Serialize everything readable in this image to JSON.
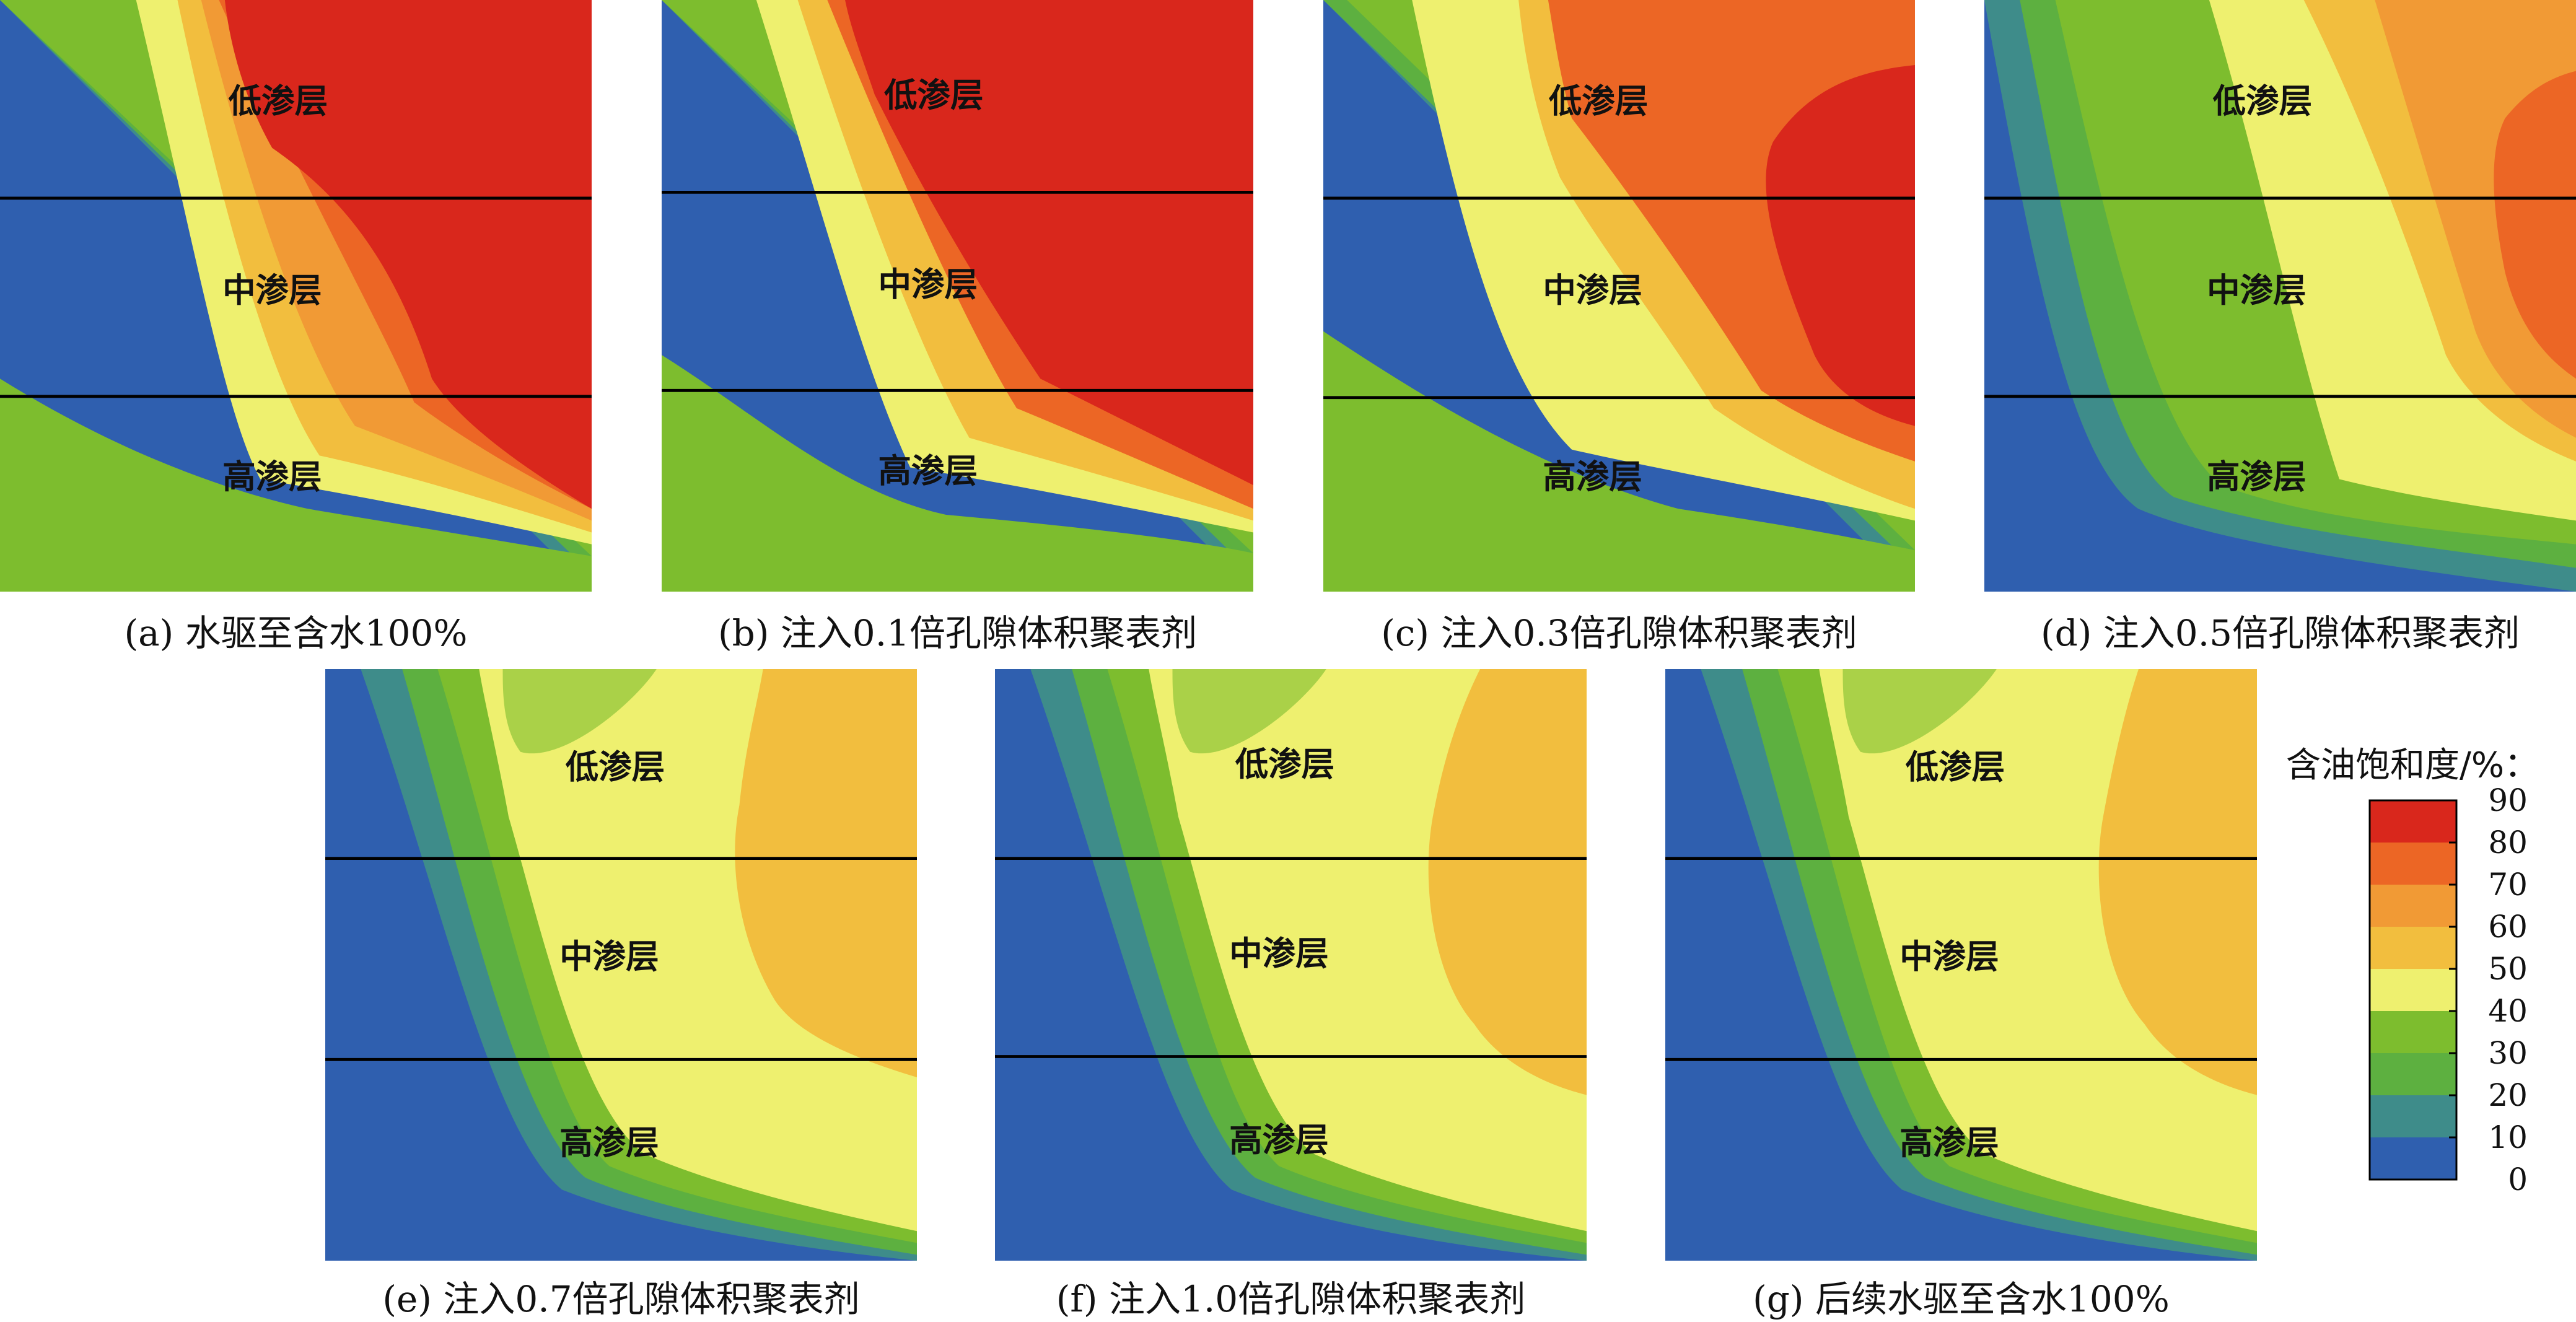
{
  "colorbar": {
    "title": "含油饱和度/%：",
    "ticks": [
      "90",
      "80",
      "70",
      "60",
      "50",
      "40",
      "30",
      "20",
      "10",
      "0"
    ],
    "colors": [
      "#d9271c",
      "#ec6625",
      "#f19a35",
      "#f2be3e",
      "#eef06f",
      "#7dbd2e",
      "#5db040",
      "#3e8c8a",
      "#2f5faf"
    ]
  },
  "layers": {
    "low": "低渗层",
    "mid": "中渗层",
    "high": "高渗层"
  },
  "panels": [
    {
      "caption": "(a) 水驱至含水100%"
    },
    {
      "caption": "(b) 注入0.1倍孔隙体积聚表剂"
    },
    {
      "caption": "(c) 注入0.3倍孔隙体积聚表剂"
    },
    {
      "caption": "(d) 注入0.5倍孔隙体积聚表剂"
    },
    {
      "caption": "(e) 注入0.7倍孔隙体积聚表剂"
    },
    {
      "caption": "(f) 注入1.0倍孔隙体积聚表剂"
    },
    {
      "caption": "(g) 后续水驱至含水100%"
    }
  ]
}
